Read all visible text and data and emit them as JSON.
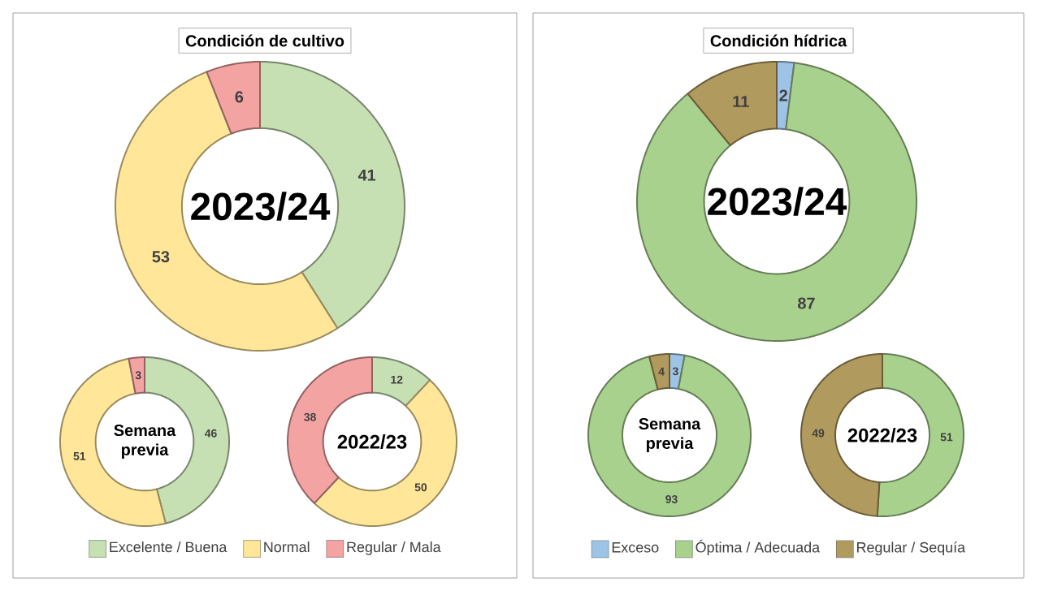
{
  "chart_data": [
    {
      "type": "donut",
      "title": "Condición de cultivo",
      "annotations": [
        "2023/24"
      ],
      "categories": [
        "Excelente / Buena",
        "Normal",
        "Regular / Mala"
      ],
      "values": [
        41,
        53,
        6
      ],
      "colors": [
        "#c6e0b4",
        "#ffe699",
        "#f4a3a3"
      ],
      "data_labels": true,
      "legend": "bottom"
    },
    {
      "type": "donut",
      "annotations": [
        "Semana previa"
      ],
      "values": [
        46,
        51,
        3
      ],
      "colors": [
        "#c6e0b4",
        "#ffe699",
        "#f4a3a3"
      ],
      "data_labels": true
    },
    {
      "type": "donut",
      "annotations": [
        "2022/23"
      ],
      "values": [
        12,
        50,
        38
      ],
      "colors": [
        "#c6e0b4",
        "#ffe699",
        "#f4a3a3"
      ],
      "data_labels": true
    },
    {
      "type": "donut",
      "title": "Condición hídrica",
      "annotations": [
        "2023/24"
      ],
      "categories": [
        "Exceso",
        "Óptima / Adecuada",
        "Regular / Sequía"
      ],
      "values": [
        2,
        87,
        11
      ],
      "colors": [
        "#9dc3e6",
        "#a9d18e",
        "#b09a5e"
      ],
      "data_labels": true,
      "legend": "bottom"
    },
    {
      "type": "donut",
      "annotations": [
        "Semana previa"
      ],
      "values": [
        3,
        93,
        4
      ],
      "colors": [
        "#9dc3e6",
        "#a9d18e",
        "#b09a5e"
      ],
      "data_labels": true
    },
    {
      "type": "donut",
      "annotations": [
        "2022/23"
      ],
      "values": [
        0,
        51,
        49
      ],
      "colors": [
        "#9dc3e6",
        "#a9d18e",
        "#b09a5e"
      ],
      "data_labels": true
    }
  ]
}
